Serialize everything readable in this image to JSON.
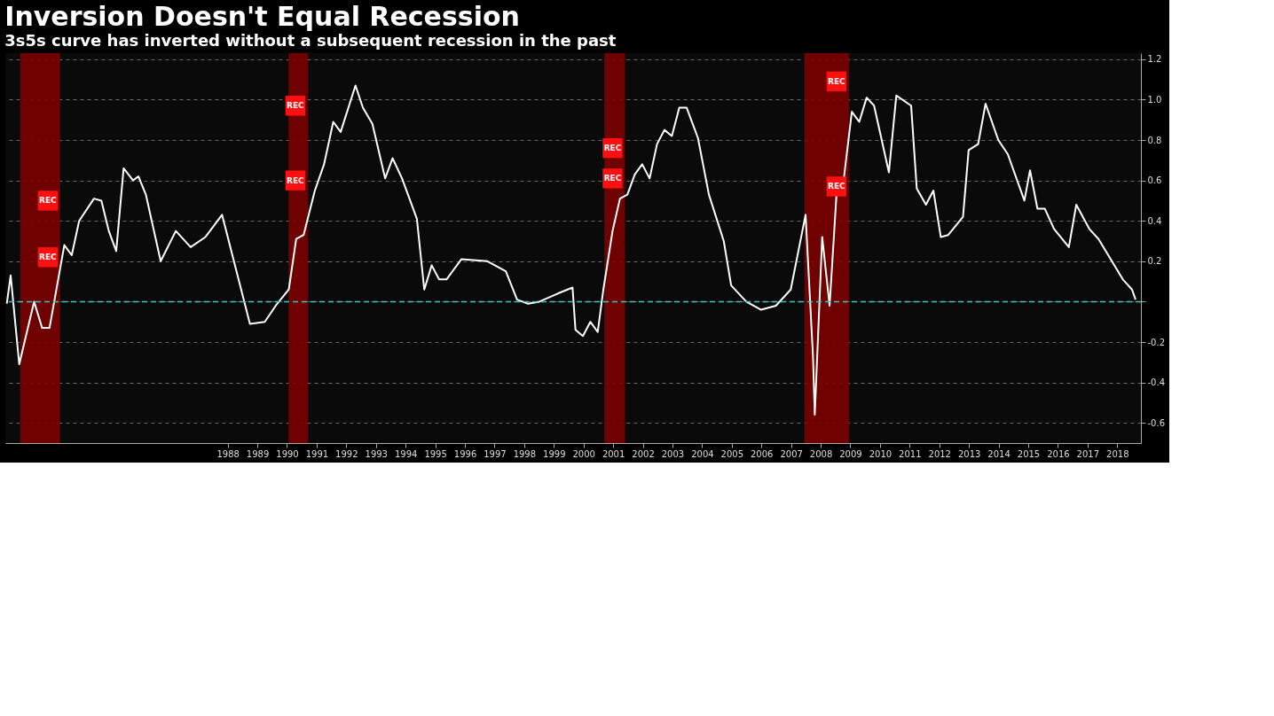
{
  "chart_data": {
    "type": "line",
    "title": "Inversion Doesn't Equal Recession",
    "subtitle": "3s5s curve has inverted without a subsequent recession in the past",
    "x": [
      1981.05,
      1981.18,
      1981.47,
      1981.97,
      1982.24,
      1982.49,
      1982.99,
      1983.24,
      1983.49,
      1983.99,
      1984.24,
      1984.49,
      1984.74,
      1984.99,
      1985.31,
      1985.49,
      1985.74,
      1986.24,
      1986.75,
      1987.25,
      1987.75,
      1988.31,
      1989.25,
      1989.75,
      1990.12,
      1990.56,
      1990.81,
      1991.06,
      1991.44,
      1991.75,
      1992.06,
      1992.31,
      1992.81,
      1993.06,
      1993.38,
      1993.81,
      1994.06,
      1994.38,
      1994.88,
      1995.13,
      1995.38,
      1995.63,
      1995.88,
      1996.38,
      1997.26,
      1997.88,
      1998.26,
      1998.63,
      1999.01,
      1999.63,
      2000.13,
      2000.23,
      2000.48,
      2000.73,
      2000.98,
      2001.17,
      2001.48,
      2001.73,
      2001.98,
      2002.23,
      2002.48,
      2002.73,
      2002.98,
      2003.23,
      2003.48,
      2003.73,
      2003.98,
      2004.36,
      2004.73,
      2005.23,
      2005.48,
      2005.99,
      2006.49,
      2006.99,
      2007.49,
      2007.99,
      2008.24,
      2008.3,
      2008.55,
      2008.8,
      2009.05,
      2009.24,
      2009.55,
      2009.8,
      2010.05,
      2010.3,
      2010.8,
      2011.05,
      2011.55,
      2011.74,
      2012.05,
      2012.3,
      2012.55,
      2012.8,
      2013.3,
      2013.49,
      2013.81,
      2014.06,
      2014.49,
      2014.81,
      2015.37,
      2015.56,
      2015.81,
      2016.06,
      2016.37,
      2016.87,
      2017.12,
      2017.56,
      2017.87,
      2018.69,
      2019.0,
      2019.12
    ],
    "series": [
      {
        "color": "#ffffff",
        "values": [
          -0.01,
          0.13,
          -0.31,
          0.0,
          -0.13,
          -0.13,
          0.28,
          0.23,
          0.4,
          0.51,
          0.5,
          0.35,
          0.25,
          0.66,
          0.6,
          0.62,
          0.53,
          0.2,
          0.35,
          0.27,
          0.32,
          0.43,
          -0.11,
          -0.1,
          -0.02,
          0.06,
          0.31,
          0.33,
          0.55,
          0.68,
          0.89,
          0.84,
          1.07,
          0.96,
          0.88,
          0.61,
          0.71,
          0.61,
          0.41,
          0.06,
          0.18,
          0.11,
          0.11,
          0.21,
          0.2,
          0.15,
          0.01,
          -0.01,
          0.0,
          0.04,
          0.07,
          -0.14,
          -0.17,
          -0.1,
          -0.15,
          0.06,
          0.35,
          0.51,
          0.53,
          0.63,
          0.68,
          0.61,
          0.78,
          0.85,
          0.82,
          0.96,
          0.96,
          0.81,
          0.53,
          0.3,
          0.08,
          0.0,
          -0.04,
          -0.02,
          0.06,
          0.43,
          -0.27,
          -0.56,
          0.32,
          -0.02,
          0.57,
          0.56,
          0.94,
          0.89,
          1.01,
          0.97,
          0.64,
          1.02,
          0.97,
          0.56,
          0.48,
          0.55,
          0.32,
          0.33,
          0.42,
          0.75,
          0.78,
          0.98,
          0.8,
          0.73,
          0.5,
          0.65,
          0.46,
          0.46,
          0.36,
          0.27,
          0.48,
          0.36,
          0.31,
          0.11,
          0.06,
          0.01
        ]
      }
    ],
    "xlim": [
      1981.0,
      2019.3
    ],
    "xticks": [
      {
        "value": 1988.5,
        "label": "1988"
      },
      {
        "value": 1989.5,
        "label": "1989"
      },
      {
        "value": 1990.5,
        "label": "1990"
      },
      {
        "value": 1991.5,
        "label": "1991"
      },
      {
        "value": 1992.5,
        "label": "1992"
      },
      {
        "value": 1993.5,
        "label": "1993"
      },
      {
        "value": 1994.5,
        "label": "1994"
      },
      {
        "value": 1995.5,
        "label": "1995"
      },
      {
        "value": 1996.5,
        "label": "1996"
      },
      {
        "value": 1997.5,
        "label": "1997"
      },
      {
        "value": 1998.5,
        "label": "1998"
      },
      {
        "value": 1999.5,
        "label": "1999"
      },
      {
        "value": 2000.5,
        "label": "2000"
      },
      {
        "value": 2001.5,
        "label": "2001"
      },
      {
        "value": 2002.5,
        "label": "2002"
      },
      {
        "value": 2003.5,
        "label": "2003"
      },
      {
        "value": 2004.5,
        "label": "2004"
      },
      {
        "value": 2005.5,
        "label": "2005"
      },
      {
        "value": 2006.5,
        "label": "2006"
      },
      {
        "value": 2007.5,
        "label": "2007"
      },
      {
        "value": 2008.5,
        "label": "2008"
      },
      {
        "value": 2009.5,
        "label": "2009"
      },
      {
        "value": 2010.5,
        "label": "2010"
      },
      {
        "value": 2011.5,
        "label": "2011"
      },
      {
        "value": 2012.5,
        "label": "2012"
      },
      {
        "value": 2013.5,
        "label": "2013"
      },
      {
        "value": 2014.5,
        "label": "2014"
      },
      {
        "value": 2015.5,
        "label": "2015"
      },
      {
        "value": 2016.5,
        "label": "2016"
      },
      {
        "value": 2017.5,
        "label": "2017"
      },
      {
        "value": 2018.5,
        "label": "2018"
      }
    ],
    "ylim": [
      -0.7,
      1.23
    ],
    "yticks": [
      1.2,
      {
        "value": 1,
        "label": "1.0"
      },
      0.8,
      0.6,
      0.4,
      0.2,
      {
        "value": 0,
        "label": null
      },
      -0.2,
      -0.4,
      -0.6
    ],
    "grid": "y",
    "line_style": "solid",
    "ref_lines": [
      {
        "axis": "y",
        "value": 0,
        "color": "#3fc4c4",
        "line_style": "dashed"
      }
    ],
    "bands": [
      {
        "axis": "x",
        "from": 1981.5,
        "to": 1982.85,
        "color": "#7a0000"
      },
      {
        "axis": "x",
        "from": 1990.55,
        "to": 1991.2,
        "color": "#7a0000"
      },
      {
        "axis": "x",
        "from": 2001.2,
        "to": 2001.9,
        "color": "#7a0000"
      },
      {
        "axis": "x",
        "from": 2007.95,
        "to": 2009.45,
        "color": "#7a0000"
      }
    ],
    "annotations": [
      {
        "text": "REC",
        "x": 1982.85,
        "y": 0.22
      },
      {
        "text": "REC",
        "x": 1982.85,
        "y": 0.5
      },
      {
        "text": "REC",
        "x": 1991.2,
        "y": 0.97
      },
      {
        "text": "REC",
        "x": 1991.2,
        "y": 0.6
      },
      {
        "text": "REC",
        "x": 2001.9,
        "y": 0.76
      },
      {
        "text": "REC",
        "x": 2001.9,
        "y": 0.61
      },
      {
        "text": "REC",
        "x": 2009.45,
        "y": 1.09
      },
      {
        "text": "REC",
        "x": 2009.45,
        "y": 0.57
      }
    ]
  }
}
